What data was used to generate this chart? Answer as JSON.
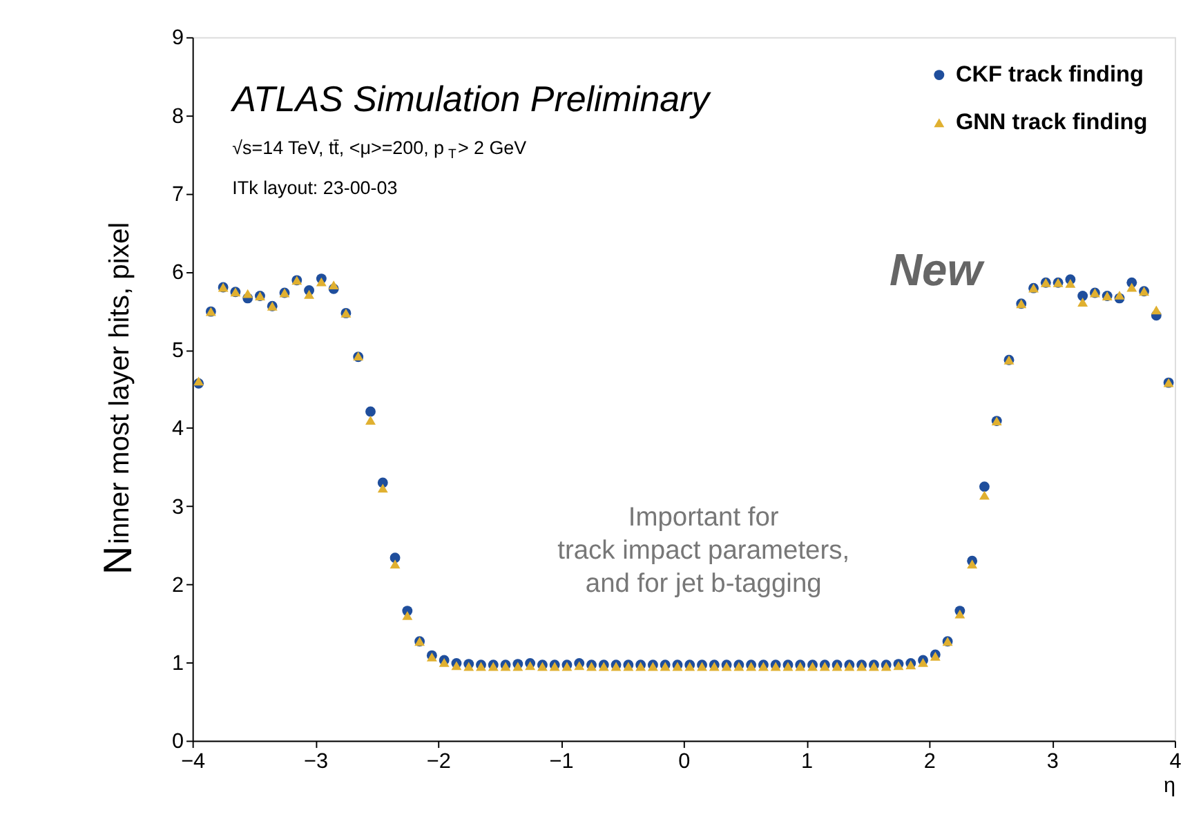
{
  "chart_data": {
    "type": "scatter",
    "title": "ATLAS Simulation Preliminary",
    "subtitle": "√s=14 TeV, tt̄, <μ>=200, p$_{T}$> 2 GeV",
    "xlabel": "η",
    "ylabel": "N$_{inner most layer hits, pixel}$",
    "annotations": [
      "ITk layout: 23-00-03",
      "New",
      "Important for\ntrack impact parameters,\nand for jet b-tagging"
    ],
    "x": [
      -3.95,
      -3.85,
      -3.75,
      -3.65,
      -3.55,
      -3.45,
      -3.35,
      -3.25,
      -3.15,
      -3.05,
      -2.95,
      -2.85,
      -2.75,
      -2.65,
      -2.55,
      -2.45,
      -2.35,
      -2.25,
      -2.15,
      -2.05,
      -1.95,
      -1.85,
      -1.75,
      -1.65,
      -1.55,
      -1.45,
      -1.35,
      -1.25,
      -1.15,
      -1.05,
      -0.95,
      -0.85,
      -0.75,
      -0.65,
      -0.55,
      -0.45,
      -0.35,
      -0.25,
      -0.15,
      -0.05,
      0.05,
      0.15,
      0.25,
      0.35,
      0.45,
      0.55,
      0.65,
      0.75,
      0.85,
      0.95,
      1.05,
      1.15,
      1.25,
      1.35,
      1.45,
      1.55,
      1.65,
      1.75,
      1.85,
      1.95,
      2.05,
      2.15,
      2.25,
      2.35,
      2.45,
      2.55,
      2.65,
      2.75,
      2.85,
      2.95,
      3.05,
      3.15,
      3.25,
      3.35,
      3.45,
      3.55,
      3.65,
      3.75,
      3.85,
      3.95
    ],
    "series": [
      {
        "name": "CKF track finding",
        "color": "#1f4e9c",
        "marker": "circle",
        "values": [
          4.57,
          5.49,
          5.8,
          5.74,
          5.66,
          5.69,
          5.56,
          5.73,
          5.89,
          5.76,
          5.91,
          5.78,
          5.47,
          4.91,
          4.21,
          3.3,
          2.34,
          1.66,
          1.27,
          1.09,
          1.03,
          0.99,
          0.98,
          0.97,
          0.97,
          0.97,
          0.98,
          0.99,
          0.97,
          0.97,
          0.97,
          0.99,
          0.97,
          0.97,
          0.97,
          0.97,
          0.97,
          0.97,
          0.97,
          0.97,
          0.97,
          0.97,
          0.97,
          0.97,
          0.97,
          0.97,
          0.97,
          0.97,
          0.97,
          0.97,
          0.97,
          0.97,
          0.97,
          0.97,
          0.97,
          0.97,
          0.97,
          0.98,
          0.99,
          1.03,
          1.1,
          1.27,
          1.66,
          2.3,
          3.25,
          4.09,
          4.87,
          5.59,
          5.79,
          5.86,
          5.86,
          5.9,
          5.69,
          5.73,
          5.69,
          5.66,
          5.86,
          5.75,
          5.44,
          4.58
        ]
      },
      {
        "name": "GNN track finding",
        "color": "#e0b030",
        "marker": "triangle",
        "values": [
          4.6,
          5.49,
          5.8,
          5.74,
          5.72,
          5.69,
          5.56,
          5.73,
          5.89,
          5.71,
          5.87,
          5.83,
          5.47,
          4.92,
          4.1,
          3.23,
          2.26,
          1.6,
          1.27,
          1.07,
          1.0,
          0.96,
          0.95,
          0.95,
          0.95,
          0.95,
          0.95,
          0.96,
          0.95,
          0.95,
          0.95,
          0.96,
          0.95,
          0.95,
          0.95,
          0.95,
          0.95,
          0.95,
          0.95,
          0.95,
          0.95,
          0.95,
          0.95,
          0.95,
          0.95,
          0.95,
          0.95,
          0.95,
          0.95,
          0.95,
          0.95,
          0.95,
          0.95,
          0.95,
          0.95,
          0.95,
          0.95,
          0.96,
          0.97,
          1.0,
          1.08,
          1.27,
          1.62,
          2.26,
          3.14,
          4.09,
          4.87,
          5.59,
          5.79,
          5.86,
          5.86,
          5.85,
          5.61,
          5.73,
          5.69,
          5.7,
          5.8,
          5.75,
          5.51,
          4.58
        ]
      }
    ],
    "xlim": [
      -4,
      4
    ],
    "xticks": [
      -4,
      -3,
      -2,
      -1,
      0,
      1,
      2,
      3,
      4
    ],
    "ylim": [
      0,
      9
    ],
    "yticks": [
      0,
      1,
      2,
      3,
      4,
      5,
      6,
      7,
      8,
      9
    ],
    "grid": false,
    "legend": "top right"
  }
}
